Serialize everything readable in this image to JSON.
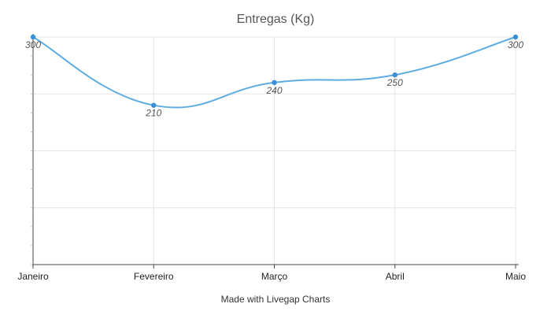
{
  "chart_data": {
    "type": "line",
    "title": "Entregas (Kg)",
    "categories": [
      "Janeiro",
      "Fevereiro",
      "Março",
      "Abril",
      "Maio"
    ],
    "series": [
      {
        "values": [
          300,
          210,
          240,
          250,
          300
        ],
        "color": "#5dade2",
        "smooth": true,
        "markers": true,
        "data_labels": [
          "300",
          "210",
          "240",
          "250",
          "300"
        ]
      }
    ],
    "xlabel": "",
    "ylabel": "",
    "ylim": [
      0,
      300
    ],
    "y_tick_labels_visible": false,
    "grid": true
  },
  "footer": {
    "credit": "Made with Livegap Charts"
  }
}
